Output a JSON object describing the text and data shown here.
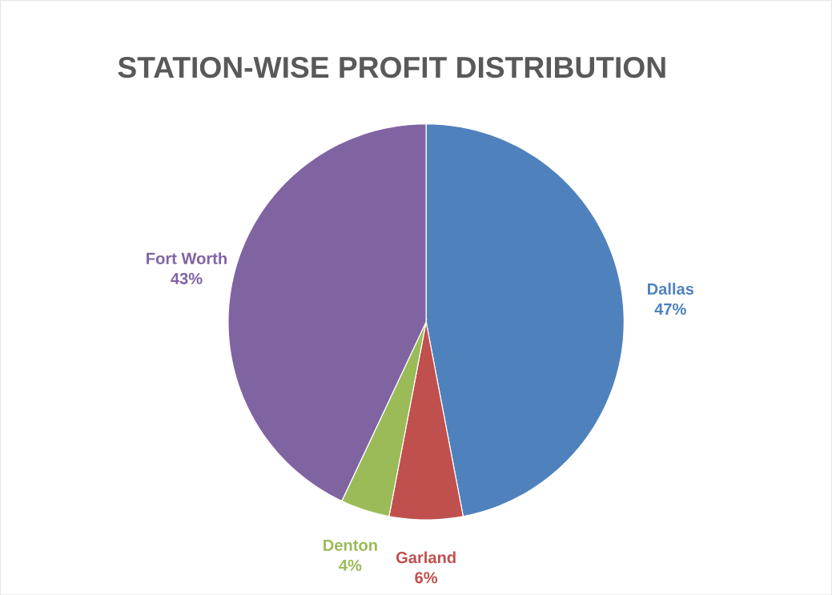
{
  "chart_data": {
    "type": "pie",
    "title": "STATION-WISE PROFIT DISTRIBUTION",
    "categories": [
      "Dallas",
      "Garland",
      "Denton",
      "Fort Worth"
    ],
    "values": [
      47,
      6,
      4,
      43
    ],
    "value_labels": [
      "47%",
      "6%",
      "4%",
      "43%"
    ],
    "colors": [
      "#4f81bd",
      "#c0504d",
      "#9bbb59",
      "#8064a2"
    ]
  }
}
